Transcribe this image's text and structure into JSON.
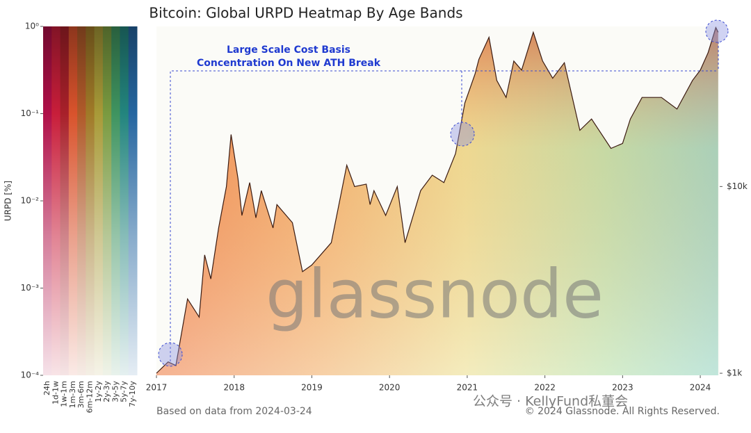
{
  "chart_data": {
    "type": "line",
    "title": "Bitcoin: Global URPD Heatmap By Age Bands",
    "x": [
      2017.0,
      2017.15,
      2017.25,
      2017.4,
      2017.55,
      2017.62,
      2017.7,
      2017.8,
      2017.9,
      2017.96,
      2018.05,
      2018.1,
      2018.2,
      2018.28,
      2018.35,
      2018.5,
      2018.55,
      2018.75,
      2018.88,
      2019.0,
      2019.25,
      2019.45,
      2019.55,
      2019.7,
      2019.75,
      2019.8,
      2019.95,
      2020.1,
      2020.2,
      2020.4,
      2020.55,
      2020.7,
      2020.85,
      2020.97,
      2021.1,
      2021.15,
      2021.28,
      2021.38,
      2021.5,
      2021.6,
      2021.7,
      2021.85,
      2021.97,
      2022.1,
      2022.25,
      2022.45,
      2022.6,
      2022.85,
      2023.0,
      2023.1,
      2023.25,
      2023.5,
      2023.7,
      2023.9,
      2024.0,
      2024.1,
      2024.2,
      2024.23
    ],
    "values": [
      1000,
      1150,
      1100,
      2500,
      2000,
      4300,
      3200,
      6000,
      10000,
      19000,
      11000,
      7000,
      10500,
      6800,
      9500,
      6000,
      8000,
      6400,
      3500,
      3800,
      5000,
      13000,
      10000,
      10300,
      8000,
      9500,
      7000,
      10000,
      5000,
      9500,
      11500,
      10500,
      15000,
      28000,
      40000,
      48000,
      63000,
      37000,
      30000,
      47000,
      42000,
      67000,
      47000,
      38000,
      46000,
      20000,
      23000,
      16000,
      17000,
      23000,
      30000,
      30000,
      26000,
      37000,
      42000,
      52000,
      71000,
      67000
    ],
    "color": "#3a1a10",
    "xlim": [
      2017,
      2024.25
    ],
    "xticks": [
      2017,
      2018,
      2019,
      2020,
      2021,
      2022,
      2023,
      2024
    ],
    "ylim": [
      975,
      72000
    ],
    "ylog": true,
    "yticks": [
      {
        "value": 10000,
        "label": "$10k"
      },
      {
        "value": 1000,
        "label": "$1k"
      }
    ],
    "annotation": [
      "Large Scale Cost Basis",
      "Concentration On New ATH Break"
    ],
    "footnote": "Based on data from 2024-03-24",
    "copyright": "© 2024 Glassnode. All Rights Reserved.",
    "watermark": "glassnode",
    "overlay_text": "公众号 · KellyFund私董会",
    "colorbar": {
      "label": "URPD [%]",
      "log": true,
      "ylim": [
        0.0001,
        1
      ],
      "yticks": [
        {
          "value": 1,
          "label": "10⁰"
        },
        {
          "value": 0.1,
          "label": "10⁻¹"
        },
        {
          "value": 0.01,
          "label": "10⁻²"
        },
        {
          "value": 0.001,
          "label": "10⁻³"
        },
        {
          "value": 0.0001,
          "label": "10⁻⁴"
        }
      ],
      "bands": [
        {
          "name": "24h",
          "color": "#b01048"
        },
        {
          "name": "1d-1w",
          "color": "#c81e3a"
        },
        {
          "name": "1w-1m",
          "color": "#a8202a"
        },
        {
          "name": "1m-3m",
          "color": "#d9532c"
        },
        {
          "name": "3m-6m",
          "color": "#b05a2a"
        },
        {
          "name": "6m-12m",
          "color": "#a07a28"
        },
        {
          "name": "1y-2y",
          "color": "#a89a38"
        },
        {
          "name": "2y-3y",
          "color": "#7a9a40"
        },
        {
          "name": "3y-5y",
          "color": "#3f9460"
        },
        {
          "name": "5y-7y",
          "color": "#23857e"
        },
        {
          "name": "7y-10y",
          "color": "#2566a0"
        }
      ]
    }
  }
}
